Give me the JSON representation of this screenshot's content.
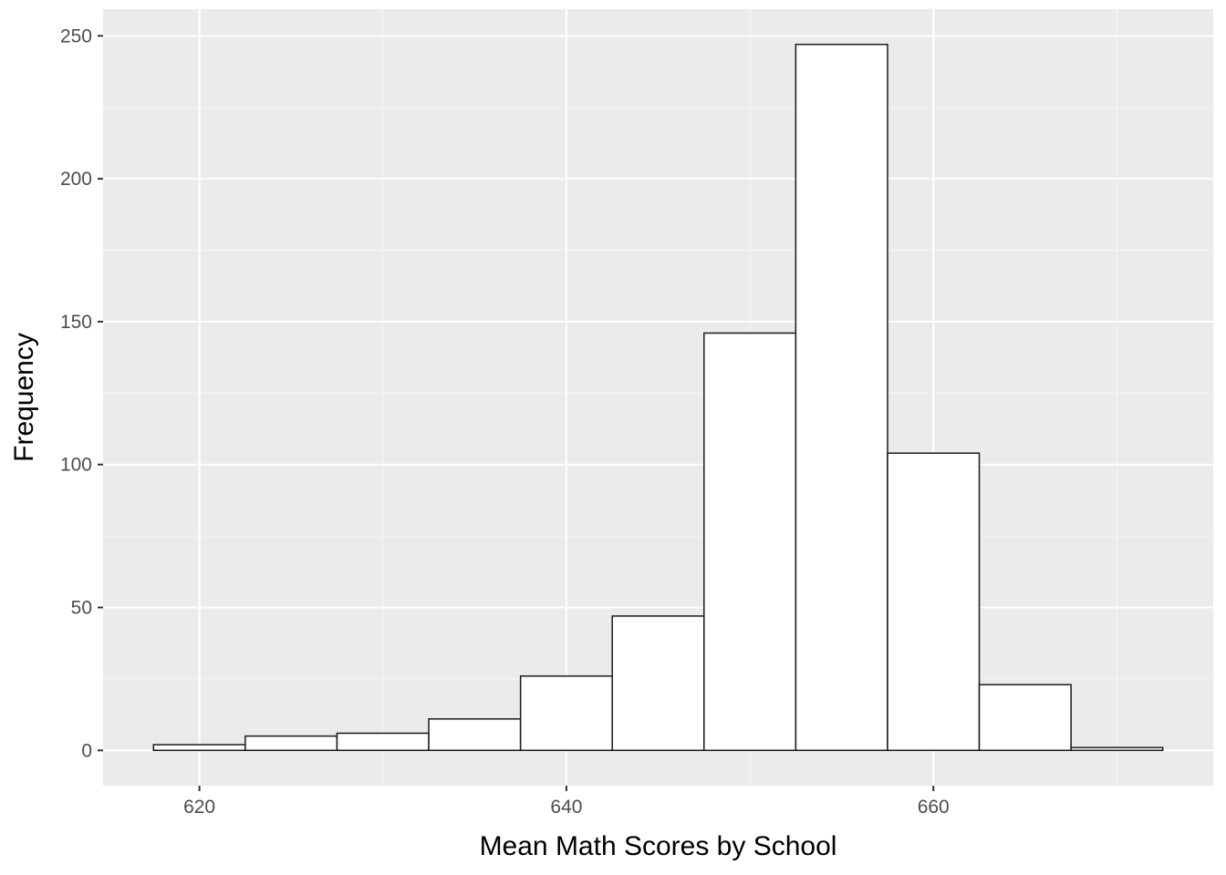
{
  "chart_data": {
    "type": "bar",
    "subtype": "histogram",
    "title": "",
    "xlabel": "Mean Math Scores by School",
    "ylabel": "Frequency",
    "bin_edges": [
      617.5,
      622.5,
      627.5,
      632.5,
      637.5,
      642.5,
      647.5,
      652.5,
      657.5,
      662.5,
      667.5,
      672.5
    ],
    "counts": [
      2,
      5,
      6,
      11,
      26,
      47,
      146,
      247,
      104,
      23,
      1
    ],
    "x_ticks": [
      620,
      640,
      660
    ],
    "x_tick_labels": [
      "620",
      "640",
      "660"
    ],
    "y_ticks": [
      0,
      50,
      100,
      150,
      200,
      250
    ],
    "y_tick_labels": [
      "0",
      "50",
      "100",
      "150",
      "200",
      "250"
    ],
    "xlim": [
      614.75,
      675.25
    ],
    "ylim": [
      -12.35,
      259.35
    ],
    "grid": true,
    "legend": "none",
    "colors": {
      "panel_background": "#EBEBEB",
      "grid_major": "#FFFFFF",
      "grid_minor": "#F5F5F5",
      "bar_fill": "#FFFFFF",
      "bar_stroke": "#1A1A1A",
      "tick_mark": "#333333",
      "tick_label": "#4D4D4D",
      "axis_title": "#000000"
    }
  }
}
